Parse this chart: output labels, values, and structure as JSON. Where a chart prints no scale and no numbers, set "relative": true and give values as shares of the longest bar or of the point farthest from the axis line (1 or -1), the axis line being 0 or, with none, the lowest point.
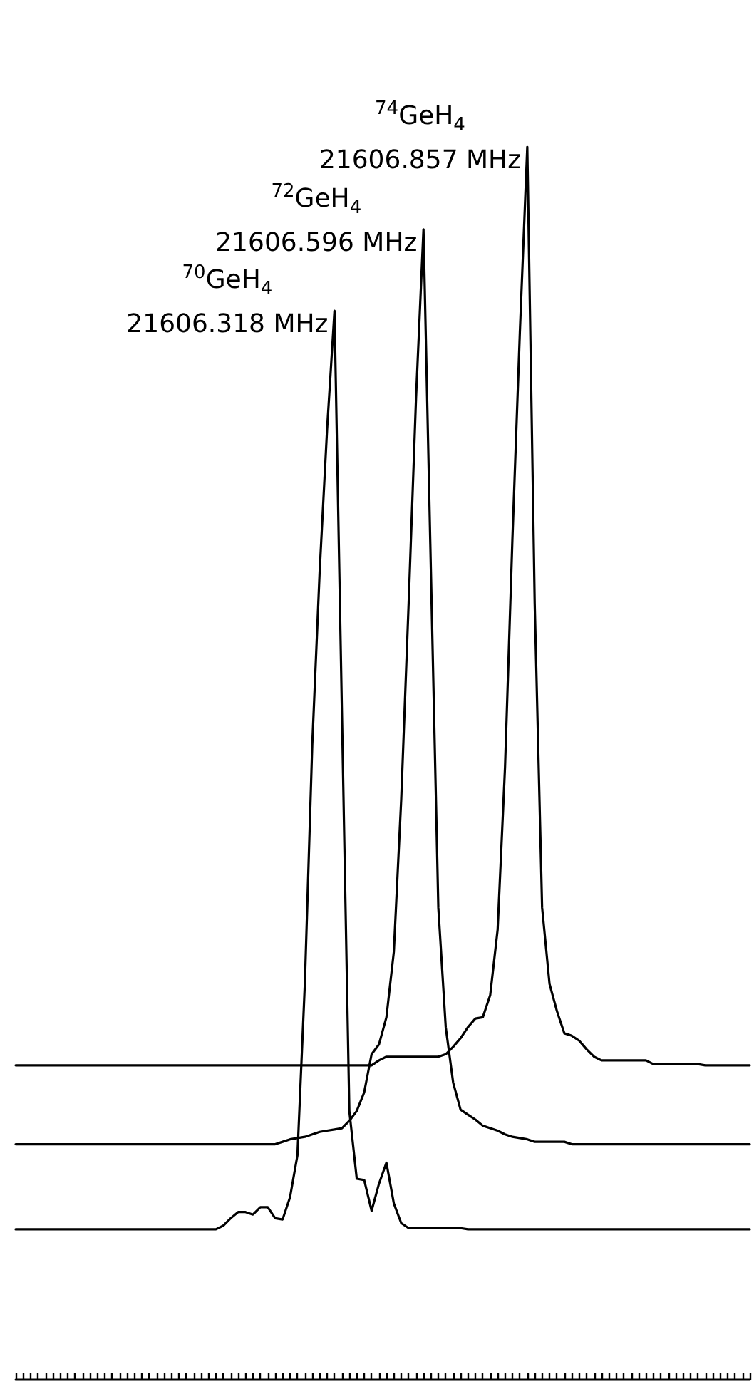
{
  "chart_data": {
    "type": "line",
    "relative": true,
    "tick_labels": false,
    "line_style": "solid",
    "categories": [
      null,
      null,
      null,
      null,
      null,
      null,
      null,
      null,
      null,
      null,
      null,
      null,
      null,
      null,
      null,
      null,
      null,
      null,
      null,
      null,
      null,
      null,
      null,
      null,
      null,
      null,
      null,
      null,
      null,
      null,
      null,
      null,
      null,
      null,
      null,
      null,
      null,
      null,
      null,
      null,
      null,
      null,
      null,
      null,
      null,
      null,
      null,
      null,
      null,
      null,
      null,
      null,
      null,
      null,
      null,
      null,
      null,
      null,
      null,
      null,
      null,
      null,
      null,
      null,
      null,
      null,
      null,
      null,
      null,
      null,
      null,
      null,
      null,
      null,
      null,
      null,
      null,
      null,
      null,
      null,
      null,
      null,
      null,
      null,
      null,
      null,
      null,
      null,
      null,
      null,
      null,
      null,
      null,
      null,
      null,
      null,
      null,
      null,
      null,
      null
    ],
    "series": [
      {
        "color": "#000000",
        "values": [
          0.122,
          0.122,
          0.122,
          0.122,
          0.122,
          0.122,
          0.122,
          0.122,
          0.122,
          0.122,
          0.122,
          0.122,
          0.122,
          0.122,
          0.122,
          0.122,
          0.122,
          0.122,
          0.122,
          0.122,
          0.122,
          0.122,
          0.122,
          0.122,
          0.122,
          0.122,
          0.122,
          0.122,
          0.125,
          0.131,
          0.136,
          0.136,
          0.134,
          0.14,
          0.14,
          0.131,
          0.13,
          0.148,
          0.182,
          0.321,
          0.515,
          0.656,
          0.771,
          0.867,
          0.541,
          0.218,
          0.163,
          0.162,
          0.137,
          0.159,
          0.176,
          0.143,
          0.127,
          0.123,
          0.123,
          0.123,
          0.123,
          0.123,
          0.123,
          0.123,
          0.123,
          0.122,
          0.122,
          0.122,
          0.122,
          0.122,
          0.122,
          0.122,
          0.122,
          0.122,
          0.122,
          0.122,
          0.122,
          0.122,
          0.122,
          0.122,
          0.122,
          0.122,
          0.122,
          0.122,
          0.122,
          0.122,
          0.122,
          0.122,
          0.122,
          0.122,
          0.122,
          0.122,
          0.122,
          0.122,
          0.122,
          0.122,
          0.122,
          0.122,
          0.122,
          0.122,
          0.122,
          0.122,
          0.122,
          0.122
        ]
      },
      {
        "color": "#000000",
        "values": [
          0.191,
          0.191,
          0.191,
          0.191,
          0.191,
          0.191,
          0.191,
          0.191,
          0.191,
          0.191,
          0.191,
          0.191,
          0.191,
          0.191,
          0.191,
          0.191,
          0.191,
          0.191,
          0.191,
          0.191,
          0.191,
          0.191,
          0.191,
          0.191,
          0.191,
          0.191,
          0.191,
          0.191,
          0.191,
          0.191,
          0.191,
          0.191,
          0.191,
          0.191,
          0.191,
          0.191,
          0.193,
          0.195,
          0.196,
          0.197,
          0.199,
          0.201,
          0.202,
          0.203,
          0.204,
          0.21,
          0.218,
          0.233,
          0.264,
          0.272,
          0.294,
          0.347,
          0.471,
          0.63,
          0.797,
          0.933,
          0.656,
          0.383,
          0.286,
          0.241,
          0.219,
          0.215,
          0.211,
          0.206,
          0.204,
          0.202,
          0.199,
          0.197,
          0.196,
          0.195,
          0.193,
          0.193,
          0.193,
          0.193,
          0.193,
          0.191,
          0.191,
          0.191,
          0.191,
          0.191,
          0.191,
          0.191,
          0.191,
          0.191,
          0.191,
          0.191,
          0.191,
          0.191,
          0.191,
          0.191,
          0.191,
          0.191,
          0.191,
          0.191,
          0.191,
          0.191,
          0.191,
          0.191,
          0.191,
          0.191
        ]
      },
      {
        "color": "#000000",
        "values": [
          0.255,
          0.255,
          0.255,
          0.255,
          0.255,
          0.255,
          0.255,
          0.255,
          0.255,
          0.255,
          0.255,
          0.255,
          0.255,
          0.255,
          0.255,
          0.255,
          0.255,
          0.255,
          0.255,
          0.255,
          0.255,
          0.255,
          0.255,
          0.255,
          0.255,
          0.255,
          0.255,
          0.255,
          0.255,
          0.255,
          0.255,
          0.255,
          0.255,
          0.255,
          0.255,
          0.255,
          0.255,
          0.255,
          0.255,
          0.255,
          0.255,
          0.255,
          0.255,
          0.255,
          0.255,
          0.255,
          0.255,
          0.255,
          0.255,
          0.259,
          0.262,
          0.262,
          0.262,
          0.262,
          0.262,
          0.262,
          0.262,
          0.262,
          0.264,
          0.27,
          0.277,
          0.286,
          0.293,
          0.294,
          0.312,
          0.365,
          0.497,
          0.683,
          0.85,
          1.0,
          0.63,
          0.383,
          0.321,
          0.299,
          0.281,
          0.279,
          0.275,
          0.268,
          0.262,
          0.259,
          0.259,
          0.259,
          0.259,
          0.259,
          0.259,
          0.259,
          0.256,
          0.256,
          0.256,
          0.256,
          0.256,
          0.256,
          0.256,
          0.255,
          0.255,
          0.255,
          0.255,
          0.255,
          0.255,
          0.255
        ]
      }
    ],
    "annotations": [
      "$^{70}$GeH$_{4}$\n21606.318 MHz",
      "$^{72}$GeH$_{4}$\n21606.596 MHz",
      "$^{74}$GeH$_{4}$\n21606.857 MHz"
    ]
  }
}
